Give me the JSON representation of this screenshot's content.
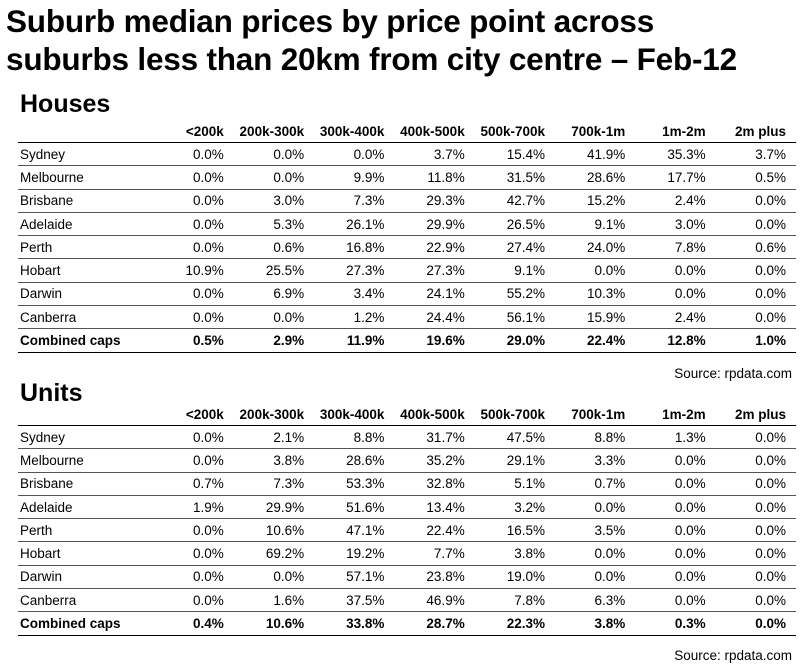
{
  "title_line1": "Suburb median prices by price point across",
  "title_line2": "suburbs less than 20km from city centre – Feb-12",
  "columns": [
    "",
    "<200k",
    "200k-300k",
    "300k-400k",
    "400k-500k",
    "500k-700k",
    "700k-1m",
    "1m-2m",
    "2m plus"
  ],
  "houses": {
    "heading": "Houses",
    "rows": [
      {
        "name": "Sydney",
        "values": [
          "0.0%",
          "0.0%",
          "0.0%",
          "3.7%",
          "15.4%",
          "41.9%",
          "35.3%",
          "3.7%"
        ]
      },
      {
        "name": "Melbourne",
        "values": [
          "0.0%",
          "0.0%",
          "9.9%",
          "11.8%",
          "31.5%",
          "28.6%",
          "17.7%",
          "0.5%"
        ]
      },
      {
        "name": "Brisbane",
        "values": [
          "0.0%",
          "3.0%",
          "7.3%",
          "29.3%",
          "42.7%",
          "15.2%",
          "2.4%",
          "0.0%"
        ]
      },
      {
        "name": "Adelaide",
        "values": [
          "0.0%",
          "5.3%",
          "26.1%",
          "29.9%",
          "26.5%",
          "9.1%",
          "3.0%",
          "0.0%"
        ]
      },
      {
        "name": "Perth",
        "values": [
          "0.0%",
          "0.6%",
          "16.8%",
          "22.9%",
          "27.4%",
          "24.0%",
          "7.8%",
          "0.6%"
        ]
      },
      {
        "name": "Hobart",
        "values": [
          "10.9%",
          "25.5%",
          "27.3%",
          "27.3%",
          "9.1%",
          "0.0%",
          "0.0%",
          "0.0%"
        ]
      },
      {
        "name": "Darwin",
        "values": [
          "0.0%",
          "6.9%",
          "3.4%",
          "24.1%",
          "55.2%",
          "10.3%",
          "0.0%",
          "0.0%"
        ]
      },
      {
        "name": "Canberra",
        "values": [
          "0.0%",
          "0.0%",
          "1.2%",
          "24.4%",
          "56.1%",
          "15.9%",
          "2.4%",
          "0.0%"
        ]
      }
    ],
    "combined": {
      "name": "Combined caps",
      "values": [
        "0.5%",
        "2.9%",
        "11.9%",
        "19.6%",
        "29.0%",
        "22.4%",
        "12.8%",
        "1.0%"
      ]
    },
    "source": "Source: rpdata.com"
  },
  "units": {
    "heading": "Units",
    "rows": [
      {
        "name": "Sydney",
        "values": [
          "0.0%",
          "2.1%",
          "8.8%",
          "31.7%",
          "47.5%",
          "8.8%",
          "1.3%",
          "0.0%"
        ]
      },
      {
        "name": "Melbourne",
        "values": [
          "0.0%",
          "3.8%",
          "28.6%",
          "35.2%",
          "29.1%",
          "3.3%",
          "0.0%",
          "0.0%"
        ]
      },
      {
        "name": "Brisbane",
        "values": [
          "0.7%",
          "7.3%",
          "53.3%",
          "32.8%",
          "5.1%",
          "0.7%",
          "0.0%",
          "0.0%"
        ]
      },
      {
        "name": "Adelaide",
        "values": [
          "1.9%",
          "29.9%",
          "51.6%",
          "13.4%",
          "3.2%",
          "0.0%",
          "0.0%",
          "0.0%"
        ]
      },
      {
        "name": "Perth",
        "values": [
          "0.0%",
          "10.6%",
          "47.1%",
          "22.4%",
          "16.5%",
          "3.5%",
          "0.0%",
          "0.0%"
        ]
      },
      {
        "name": "Hobart",
        "values": [
          "0.0%",
          "69.2%",
          "19.2%",
          "7.7%",
          "3.8%",
          "0.0%",
          "0.0%",
          "0.0%"
        ]
      },
      {
        "name": "Darwin",
        "values": [
          "0.0%",
          "0.0%",
          "57.1%",
          "23.8%",
          "19.0%",
          "0.0%",
          "0.0%",
          "0.0%"
        ]
      },
      {
        "name": "Canberra",
        "values": [
          "0.0%",
          "1.6%",
          "37.5%",
          "46.9%",
          "7.8%",
          "6.3%",
          "0.0%",
          "0.0%"
        ]
      }
    ],
    "combined": {
      "name": "Combined caps",
      "values": [
        "0.4%",
        "10.6%",
        "33.8%",
        "28.7%",
        "22.3%",
        "3.8%",
        "0.3%",
        "0.0%"
      ]
    },
    "source": "Source: rpdata.com"
  }
}
